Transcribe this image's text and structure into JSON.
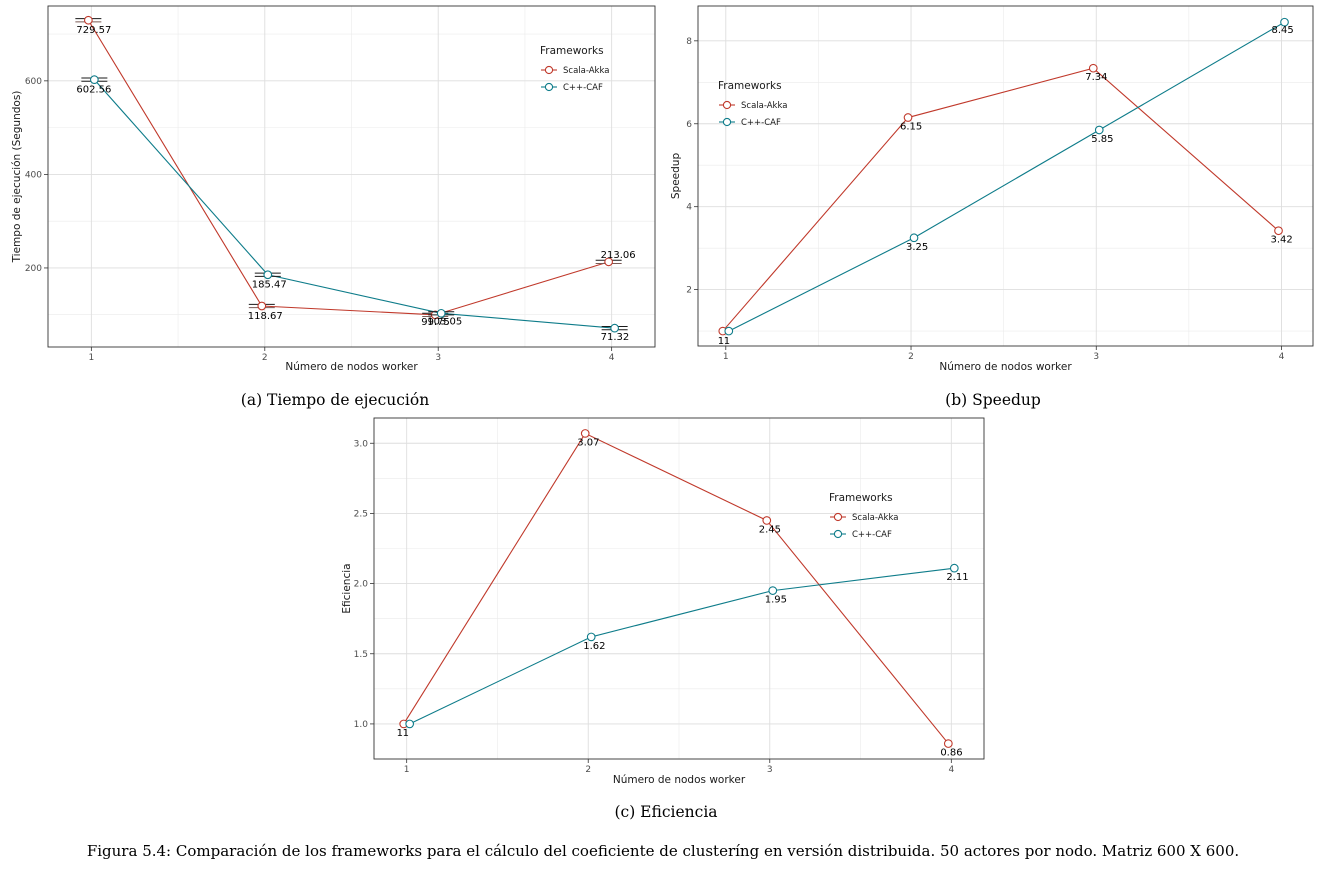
{
  "figure": {
    "caption": "Figura 5.4: Comparación de los frameworks para el cálculo del coeficiente de clusteríng en versión distribuida. 50 actores por nodo. Matriz 600 X 600."
  },
  "chart_data": [
    {
      "id": "a",
      "type": "line",
      "subcaption": "(a) Tiempo de ejecución",
      "xlabel": "Número de nodos worker",
      "ylabel": "Tiempo de ejecución (Segundos)",
      "x": [
        1,
        2,
        3,
        4
      ],
      "xlim": [
        0.75,
        4.25
      ],
      "ylim": [
        31,
        760
      ],
      "yticks": [
        200,
        400,
        600
      ],
      "grid": true,
      "error_bars": true,
      "legend": {
        "title": "Frameworks",
        "placement": "top-right"
      },
      "series": [
        {
          "name": "Scala-Akka",
          "color": "#c0392b",
          "values": [
            729.57,
            118.67,
            99.75,
            213.06
          ],
          "labels": [
            "729.57",
            "118.67",
            "99.75",
            "213.06"
          ]
        },
        {
          "name": "C++-CAF",
          "color": "#0e7c8a",
          "values": [
            602.56,
            185.47,
            103.05,
            71.32
          ],
          "labels": [
            "602.56",
            "185.47",
            "103.05",
            "71.32"
          ]
        }
      ]
    },
    {
      "id": "b",
      "type": "line",
      "subcaption": "(b) Speedup",
      "xlabel": "Número de nodos worker",
      "ylabel": "Speedup",
      "x": [
        1,
        2,
        3,
        4
      ],
      "xlim": [
        0.85,
        4.17
      ],
      "ylim": [
        0.64,
        8.84
      ],
      "yticks": [
        2,
        4,
        6,
        8
      ],
      "grid": true,
      "legend": {
        "title": "Frameworks",
        "placement": "top-left"
      },
      "series": [
        {
          "name": "Scala-Akka",
          "color": "#c0392b",
          "values": [
            1,
            6.15,
            7.34,
            3.42
          ],
          "labels": [
            "1",
            "6.15",
            "7.34",
            "3.42"
          ]
        },
        {
          "name": "C++-CAF",
          "color": "#0e7c8a",
          "values": [
            1,
            3.25,
            5.85,
            8.45
          ],
          "labels": [
            "1",
            "3.25",
            "5.85",
            "8.45"
          ]
        }
      ]
    },
    {
      "id": "c",
      "type": "line",
      "subcaption": "(c) Eficiencia",
      "xlabel": "Número de nodos worker",
      "ylabel": "Eficiencia",
      "x": [
        1,
        2,
        3,
        4
      ],
      "xlim": [
        0.82,
        4.18
      ],
      "ylim": [
        0.75,
        3.18
      ],
      "yticks": [
        1.0,
        1.5,
        2.0,
        2.5,
        3.0
      ],
      "ytick_labels": [
        "1.0",
        "1.5",
        "2.0",
        "2.5",
        "3.0"
      ],
      "grid": true,
      "legend": {
        "title": "Frameworks",
        "placement": "top-right"
      },
      "series": [
        {
          "name": "Scala-Akka",
          "color": "#c0392b",
          "values": [
            1,
            3.07,
            2.45,
            0.86
          ],
          "labels": [
            "1",
            "3.07",
            "2.45",
            "0.86"
          ]
        },
        {
          "name": "C++-CAF",
          "color": "#0e7c8a",
          "values": [
            1,
            1.62,
            1.95,
            2.11
          ],
          "labels": [
            "1",
            "1.62",
            "1.95",
            "2.11"
          ]
        }
      ]
    }
  ]
}
